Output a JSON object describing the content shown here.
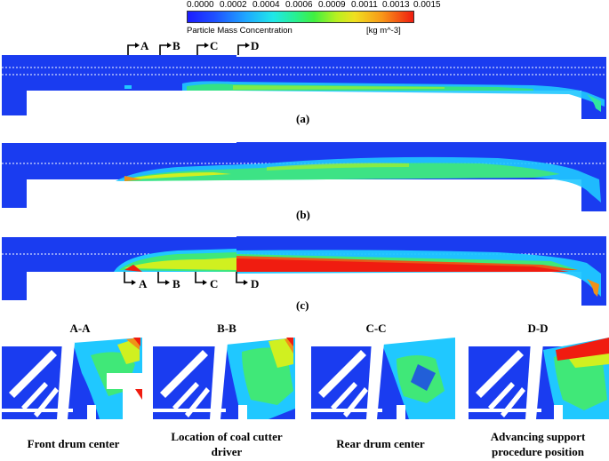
{
  "colorbar": {
    "ticks": [
      "0.0000",
      "0.0002",
      "0.0004",
      "0.0006",
      "0.0009",
      "0.0011",
      "0.0013",
      "0.0015"
    ],
    "title": "Particle Mass Concentration",
    "unit": "[kg m^-3]",
    "range": [
      0.0,
      0.0015
    ]
  },
  "panels": [
    {
      "label": "(a)"
    },
    {
      "label": "(b)"
    },
    {
      "label": "(c)"
    }
  ],
  "section_markers": [
    "A",
    "B",
    "C",
    "D"
  ],
  "sections": [
    {
      "title": "A-A",
      "caption": "Front drum center"
    },
    {
      "title": "B-B",
      "caption": "Location of coal cutter driver"
    },
    {
      "title": "C-C",
      "caption": "Rear drum center"
    },
    {
      "title": "D-D",
      "caption": "Advancing support procedure position"
    }
  ],
  "colors": {
    "low": "#1a3cf0",
    "mid_low": "#1ec8ff",
    "mid": "#2ff06a",
    "mid_high": "#d8f020",
    "high": "#f01c10"
  }
}
